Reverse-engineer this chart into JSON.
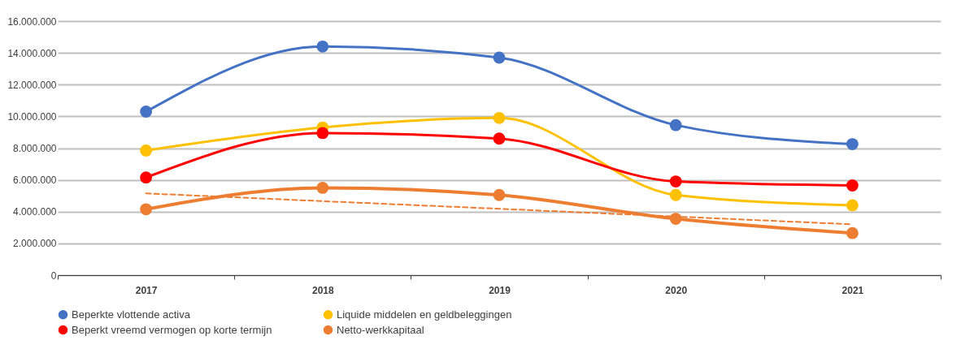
{
  "chart_data": {
    "type": "line",
    "categories": [
      "2017",
      "2018",
      "2019",
      "2020",
      "2021"
    ],
    "series": [
      {
        "name": "Beperkte vlottende activa",
        "color": "#4472c4",
        "values": [
          10300000,
          14400000,
          13700000,
          9450000,
          8250000
        ]
      },
      {
        "name": "Liquide middelen en geldbeleggingen",
        "color": "#ffc000",
        "values": [
          7850000,
          9300000,
          9900000,
          5050000,
          4400000
        ]
      },
      {
        "name": "Beperkt vreemd vermogen op korte termijn",
        "color": "#ff0000",
        "values": [
          6150000,
          8950000,
          8600000,
          5900000,
          5650000
        ]
      },
      {
        "name": "Netto-werkkapitaal",
        "color": "#ed7d31",
        "values": [
          4150000,
          5500000,
          5050000,
          3550000,
          2650000
        ]
      },
      {
        "type": "line",
        "color": "#ed7d31",
        "values": [
          5150000,
          4660000,
          4180000,
          3690000,
          3200000
        ],
        "line_style": "dashed",
        "marker": "none"
      }
    ],
    "ylim": [
      0,
      16000000
    ],
    "yticks": [
      0,
      {
        "value": 2000000,
        "label": "2.000.000"
      },
      {
        "value": 4000000,
        "label": "4.000.000"
      },
      {
        "value": 6000000,
        "label": "6.000.000"
      },
      {
        "value": 8000000,
        "label": "8.000.000"
      },
      {
        "value": 10000000,
        "label": "10.000.000"
      },
      {
        "value": 12000000,
        "label": "12.000.000"
      },
      {
        "value": 14000000,
        "label": "14.000.000"
      },
      {
        "value": 16000000,
        "label": "16.000.000"
      }
    ],
    "grid": "y",
    "legend": "bottom",
    "marker": "circle"
  }
}
